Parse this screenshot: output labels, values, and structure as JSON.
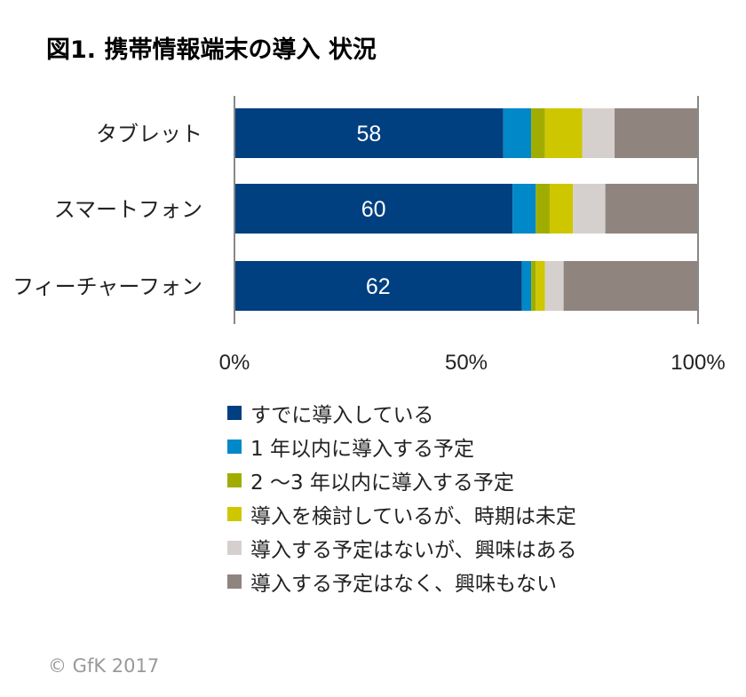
{
  "chart_data": {
    "type": "bar",
    "orientation": "horizontal",
    "stacked": true,
    "title": "図1. 携帯情報端末の導入 状況",
    "categories": [
      "タブレット",
      "スマートフォン",
      "フィーチャーフォン"
    ],
    "xlim": [
      0,
      100
    ],
    "xticks": [
      "0%",
      "50%",
      "100%"
    ],
    "series": [
      {
        "name": "すでに導入している",
        "color": "#003F80",
        "values": [
          58,
          60,
          62
        ],
        "labels": [
          "58",
          "60",
          "62"
        ]
      },
      {
        "name": "1 年以内に導入する予定",
        "color": "#0088C8",
        "values": [
          6,
          5,
          2
        ]
      },
      {
        "name": "2 〜3 年以内に導入する予定",
        "color": "#A0AD00",
        "values": [
          3,
          3,
          1
        ]
      },
      {
        "name": "導入を検討しているが、時期は未定",
        "color": "#CEC700",
        "values": [
          8,
          5,
          2
        ]
      },
      {
        "name": "導入する予定はないが、興味はある",
        "color": "#D5D0CE",
        "values": [
          7,
          7,
          4
        ]
      },
      {
        "name": "導入する予定はなく、興味もない",
        "color": "#90847F",
        "values": [
          18,
          20,
          29
        ]
      }
    ],
    "legend_position": "bottom"
  },
  "copyright": "© GfK 2017"
}
